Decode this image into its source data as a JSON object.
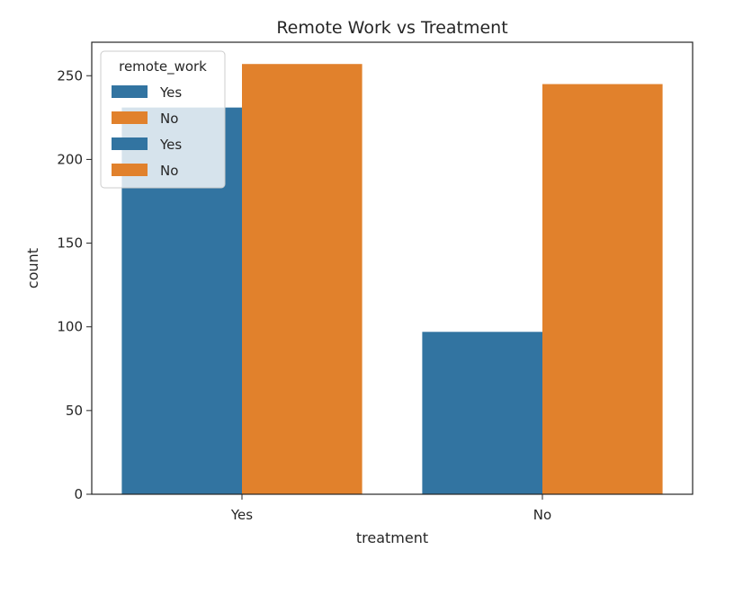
{
  "chart_data": {
    "type": "bar",
    "title": "Remote Work vs Treatment",
    "xlabel": "treatment",
    "ylabel": "count",
    "categories": [
      "Yes",
      "No"
    ],
    "series": [
      {
        "name": "Yes",
        "values": [
          231,
          97
        ],
        "color": "#3274a1"
      },
      {
        "name": "No",
        "values": [
          257,
          245
        ],
        "color": "#e1812c"
      }
    ],
    "yticks": [
      0,
      50,
      100,
      150,
      200,
      250
    ],
    "ylim": [
      0,
      270
    ],
    "grid": false,
    "legend": {
      "title": "remote_work",
      "placement": "top-left",
      "entries": [
        {
          "label": "Yes",
          "color": "#3274a1"
        },
        {
          "label": "No",
          "color": "#e1812c"
        },
        {
          "label": "Yes",
          "color": "#3274a1"
        },
        {
          "label": "No",
          "color": "#e1812c"
        }
      ]
    }
  }
}
